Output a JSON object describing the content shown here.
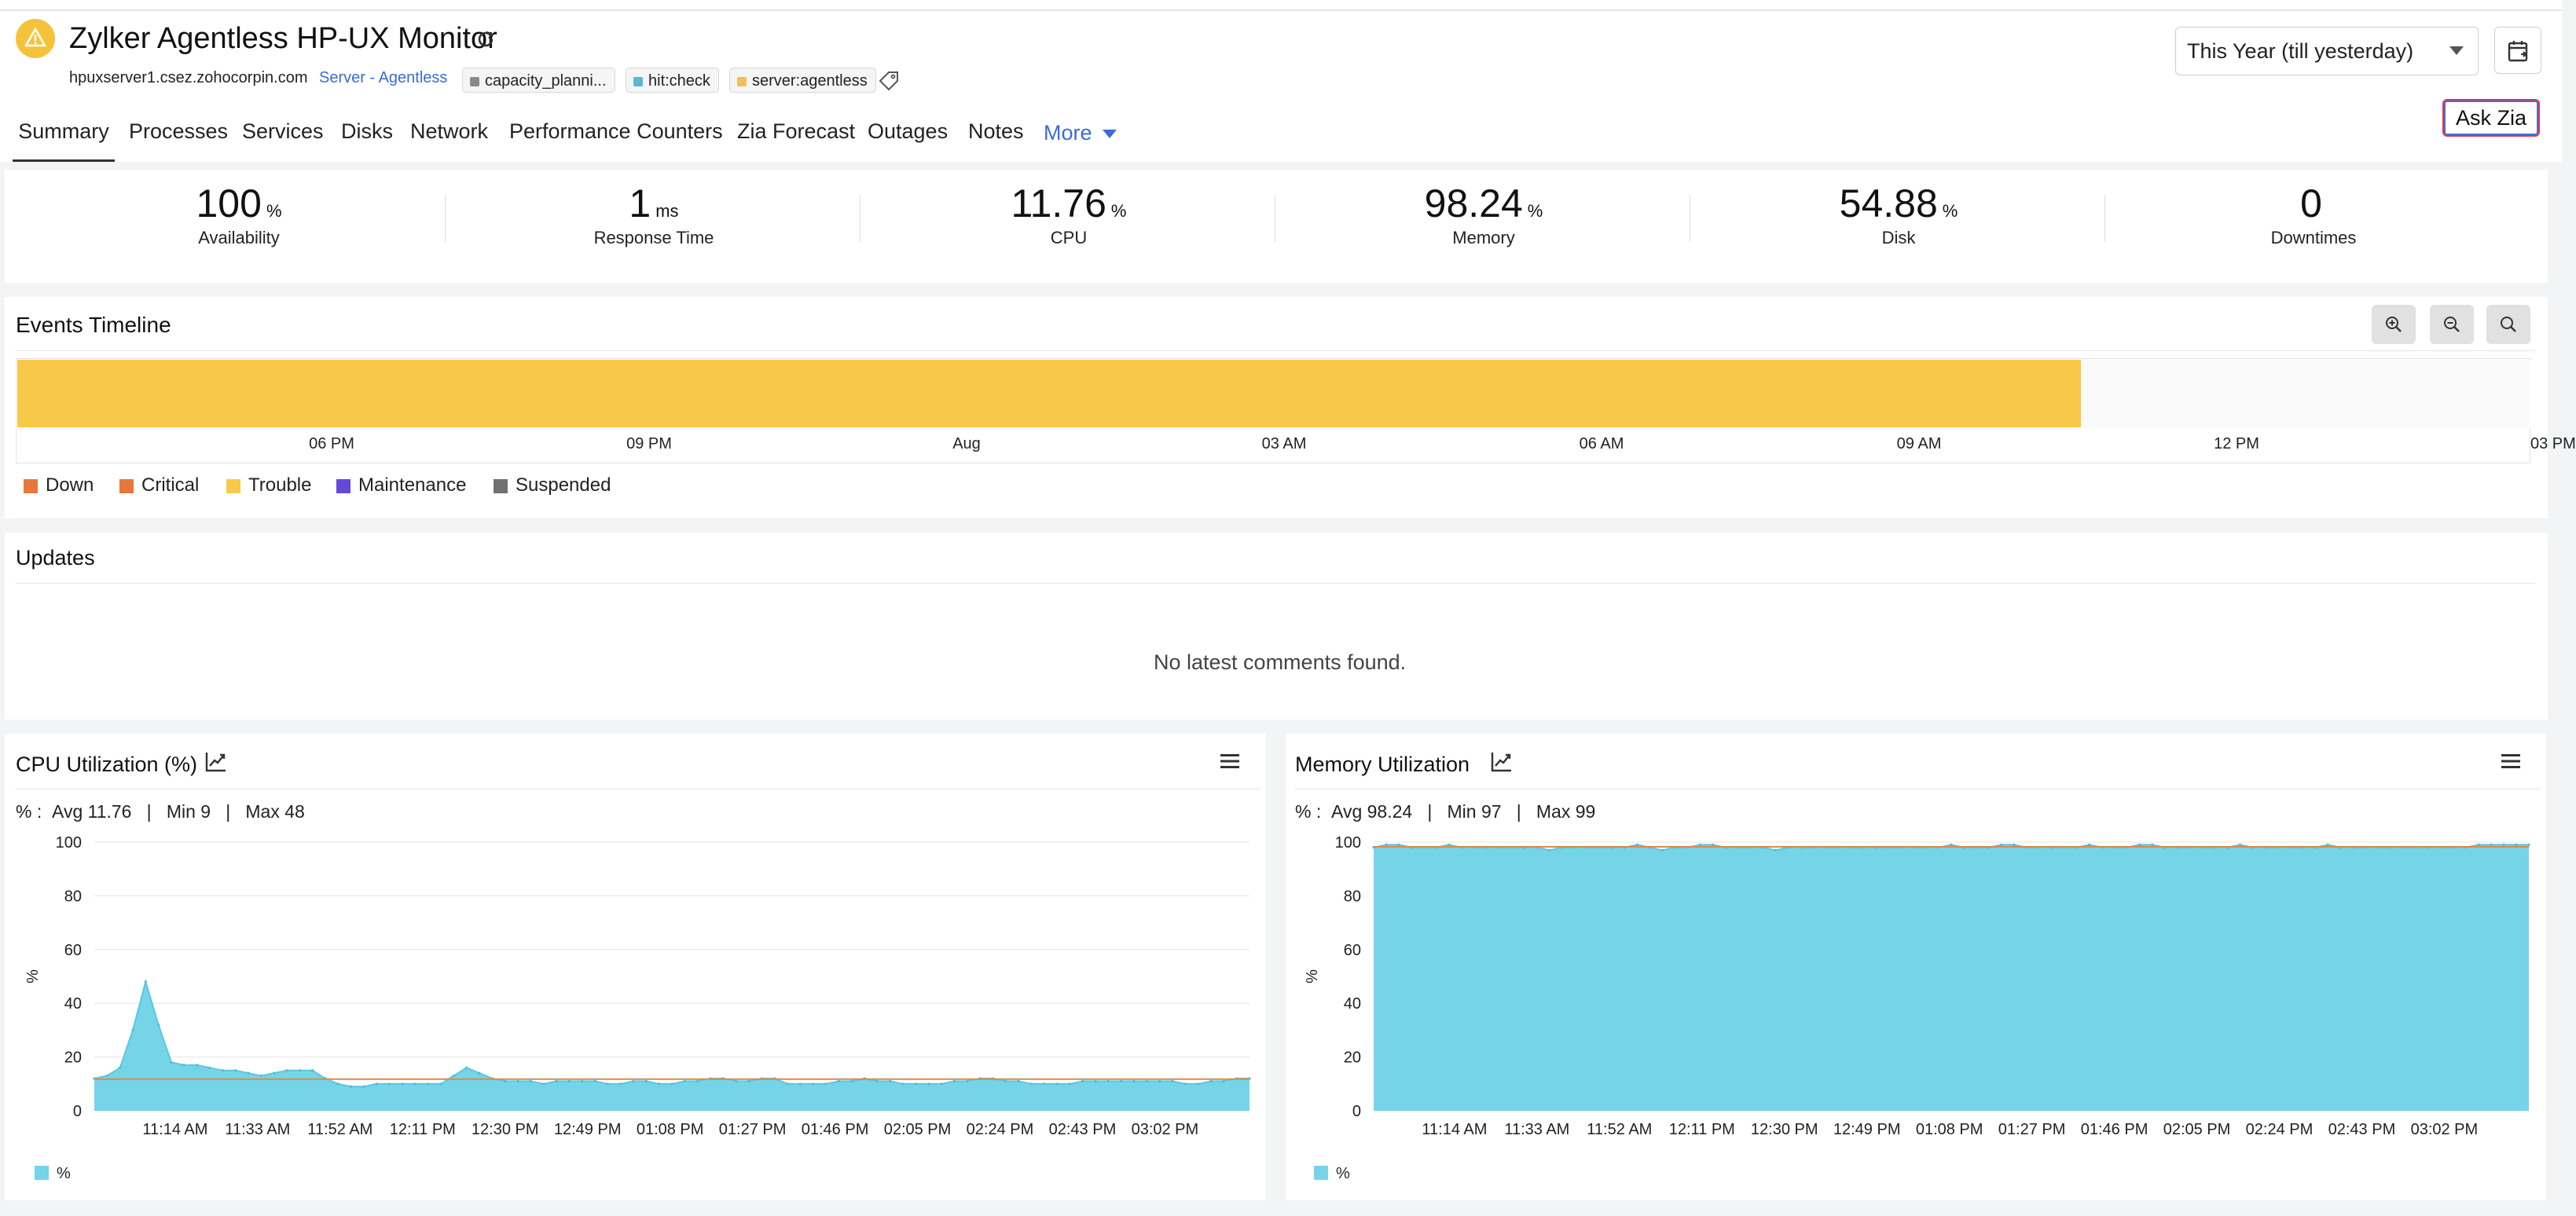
{
  "header": {
    "title": "Zylker Agentless HP-UX Monitor",
    "host": "hpuxserver1.csez.zohocorpin.com",
    "monitor_type": "Server - Agentless",
    "tags": [
      {
        "label": "capacity_planni...",
        "color": "#8a8a8a"
      },
      {
        "label": "hit:check",
        "color": "#5bb6d6"
      },
      {
        "label": "server:agentless",
        "color": "#f0c05a"
      }
    ],
    "date_range": "This Year (till yesterday)",
    "ask_zia": "Ask Zia"
  },
  "tabs": [
    "Summary",
    "Processes",
    "Services",
    "Disks",
    "Network",
    "Performance Counters",
    "Zia Forecast",
    "Outages",
    "Notes"
  ],
  "active_tab": "Summary",
  "more_label": "More",
  "metrics": [
    {
      "value": "100",
      "unit": "%",
      "label": "Availability"
    },
    {
      "value": "1",
      "unit": "ms",
      "label": "Response Time"
    },
    {
      "value": "11.76",
      "unit": "%",
      "label": "CPU"
    },
    {
      "value": "98.24",
      "unit": "%",
      "label": "Memory"
    },
    {
      "value": "54.88",
      "unit": "%",
      "label": "Disk"
    },
    {
      "value": "0",
      "unit": "",
      "label": "Downtimes"
    }
  ],
  "events_timeline": {
    "title": "Events Timeline",
    "ticks": [
      "06 PM",
      "09 PM",
      "Aug",
      "03 AM",
      "06 AM",
      "09 AM",
      "12 PM",
      "03 PM"
    ],
    "trouble_fraction": 0.821,
    "legend": [
      {
        "label": "Down",
        "color": "#e8773a"
      },
      {
        "label": "Critical",
        "color": "#e8773a"
      },
      {
        "label": "Trouble",
        "color": "#f8c948"
      },
      {
        "label": "Maintenance",
        "color": "#6648d8"
      },
      {
        "label": "Suspended",
        "color": "#707070"
      }
    ]
  },
  "updates": {
    "title": "Updates",
    "empty_text": "No latest comments found."
  },
  "chart_data": [
    {
      "type": "area",
      "title": "CPU Utilization (%)",
      "stats": {
        "prefix": "% :",
        "avg": "Avg 11.76",
        "min": "Min 9",
        "max": "Max 48"
      },
      "ylabel": "%",
      "ylim": [
        0,
        100
      ],
      "yticks": [
        "100",
        "80",
        "60",
        "40",
        "20",
        "0"
      ],
      "xticks": [
        "11:14 AM",
        "11:33 AM",
        "11:52 AM",
        "12:11 PM",
        "12:30 PM",
        "12:49 PM",
        "01:08 PM",
        "01:27 PM",
        "01:46 PM",
        "02:05 PM",
        "02:24 PM",
        "02:43 PM",
        "03:02 PM"
      ],
      "avg_line": 11.76,
      "series": [
        {
          "name": "%",
          "color": "#76d4e8",
          "values": [
            12,
            13,
            16,
            30,
            48,
            32,
            18,
            17,
            17,
            16,
            15,
            15,
            14,
            13,
            14,
            15,
            15,
            15,
            12,
            10,
            9,
            9,
            10,
            10,
            10,
            10,
            10,
            10,
            13,
            16,
            14,
            12,
            11,
            11,
            11,
            10,
            11,
            11,
            11,
            11,
            10,
            10,
            11,
            11,
            10,
            10,
            11,
            11,
            12,
            12,
            11,
            11,
            12,
            12,
            10,
            10,
            10,
            10,
            11,
            11,
            12,
            11,
            11,
            10,
            10,
            10,
            10,
            11,
            11,
            12,
            12,
            11,
            11,
            10,
            10,
            10,
            10,
            11,
            11,
            11,
            11,
            11,
            11,
            11,
            11,
            10,
            10,
            11,
            11,
            12,
            12
          ]
        }
      ]
    },
    {
      "type": "area",
      "title": "Memory Utilization",
      "stats": {
        "prefix": "% :",
        "avg": "Avg 98.24",
        "min": "Min 97",
        "max": "Max 99"
      },
      "ylabel": "%",
      "ylim": [
        0,
        100
      ],
      "yticks": [
        "100",
        "80",
        "60",
        "40",
        "20",
        "0"
      ],
      "xticks": [
        "11:14 AM",
        "11:33 AM",
        "11:52 AM",
        "12:11 PM",
        "12:30 PM",
        "12:49 PM",
        "01:08 PM",
        "01:27 PM",
        "01:46 PM",
        "02:05 PM",
        "02:24 PM",
        "02:43 PM",
        "03:02 PM"
      ],
      "avg_line": 98.24,
      "series": [
        {
          "name": "%",
          "color": "#76d4e8",
          "values": [
            98,
            99,
            99,
            98,
            98,
            98,
            99,
            98,
            98,
            98,
            98,
            98,
            98,
            98,
            97,
            98,
            98,
            98,
            98,
            98,
            98,
            99,
            98,
            97,
            98,
            98,
            99,
            99,
            98,
            98,
            98,
            98,
            97,
            98,
            98,
            98,
            98,
            98,
            98,
            98,
            98,
            98,
            98,
            98,
            98,
            98,
            99,
            98,
            98,
            98,
            99,
            99,
            98,
            98,
            98,
            98,
            98,
            99,
            98,
            98,
            98,
            99,
            99,
            98,
            98,
            98,
            98,
            98,
            98,
            99,
            98,
            98,
            98,
            98,
            98,
            98,
            99,
            98,
            98,
            98,
            98,
            98,
            98,
            98,
            98,
            98,
            98,
            98,
            99,
            99,
            99,
            99,
            99
          ]
        }
      ]
    }
  ]
}
